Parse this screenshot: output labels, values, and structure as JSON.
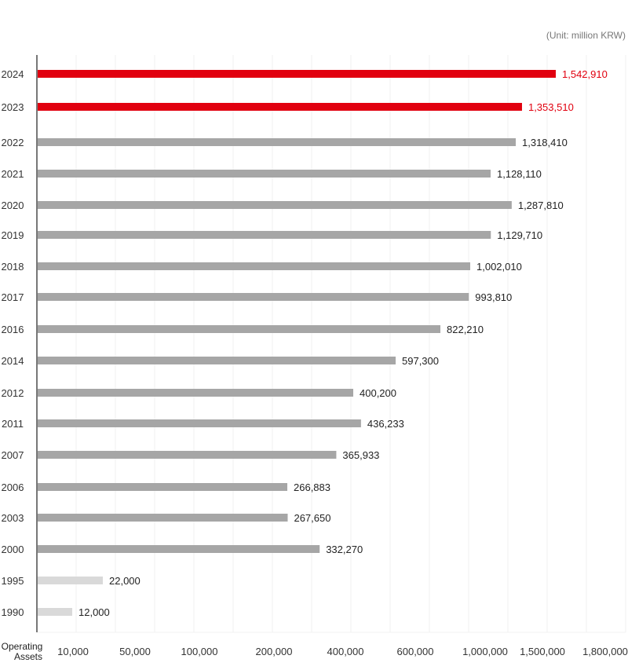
{
  "unit_note": "(Unit: million KRW)",
  "colors": {
    "highlight": "#e1000f",
    "normal": "#a6a6a6",
    "early": "#d9d9d9",
    "axis": "#777777",
    "grid": "#f0f0f0"
  },
  "chart_data": {
    "type": "bar",
    "orientation": "horizontal",
    "title": "",
    "xlabel": "Operating Assets",
    "x_axis_line1": "Operating",
    "x_axis_line2": "Assets",
    "grid": true,
    "scale": "piecewise (non-linear) with labeled ticks",
    "ticks": [
      "10,000",
      "50,000",
      "100,000",
      "200,000",
      "400,000",
      "600,000",
      "1,000,000",
      "1,500,000",
      "1,800,000"
    ],
    "tick_values": [
      10000,
      50000,
      100000,
      200000,
      400000,
      600000,
      1000000,
      1500000,
      1800000
    ],
    "categories": [
      "2024",
      "2023",
      "2022",
      "2021",
      "2020",
      "2019",
      "2018",
      "2017",
      "2016",
      "2014",
      "2012",
      "2011",
      "2007",
      "2006",
      "2003",
      "2000",
      "1995",
      "1990"
    ],
    "values": [
      1542910,
      1353510,
      1318410,
      1128110,
      1287810,
      1129710,
      1002010,
      993810,
      822210,
      597300,
      400200,
      436233,
      365933,
      266883,
      267650,
      332270,
      22000,
      12000
    ],
    "labels": [
      "1,542,910",
      "1,353,510",
      "1,318,410",
      "1,128,110",
      "1,287,810",
      "1,129,710",
      "1,002,010",
      "993,810",
      "822,210",
      "597,300",
      "400,200",
      "436,233",
      "365,933",
      "266,883",
      "267,650",
      "332,270",
      "22,000",
      "12,000"
    ],
    "highlight": [
      "2024",
      "2023"
    ],
    "muted": [
      "1995",
      "1990"
    ]
  }
}
